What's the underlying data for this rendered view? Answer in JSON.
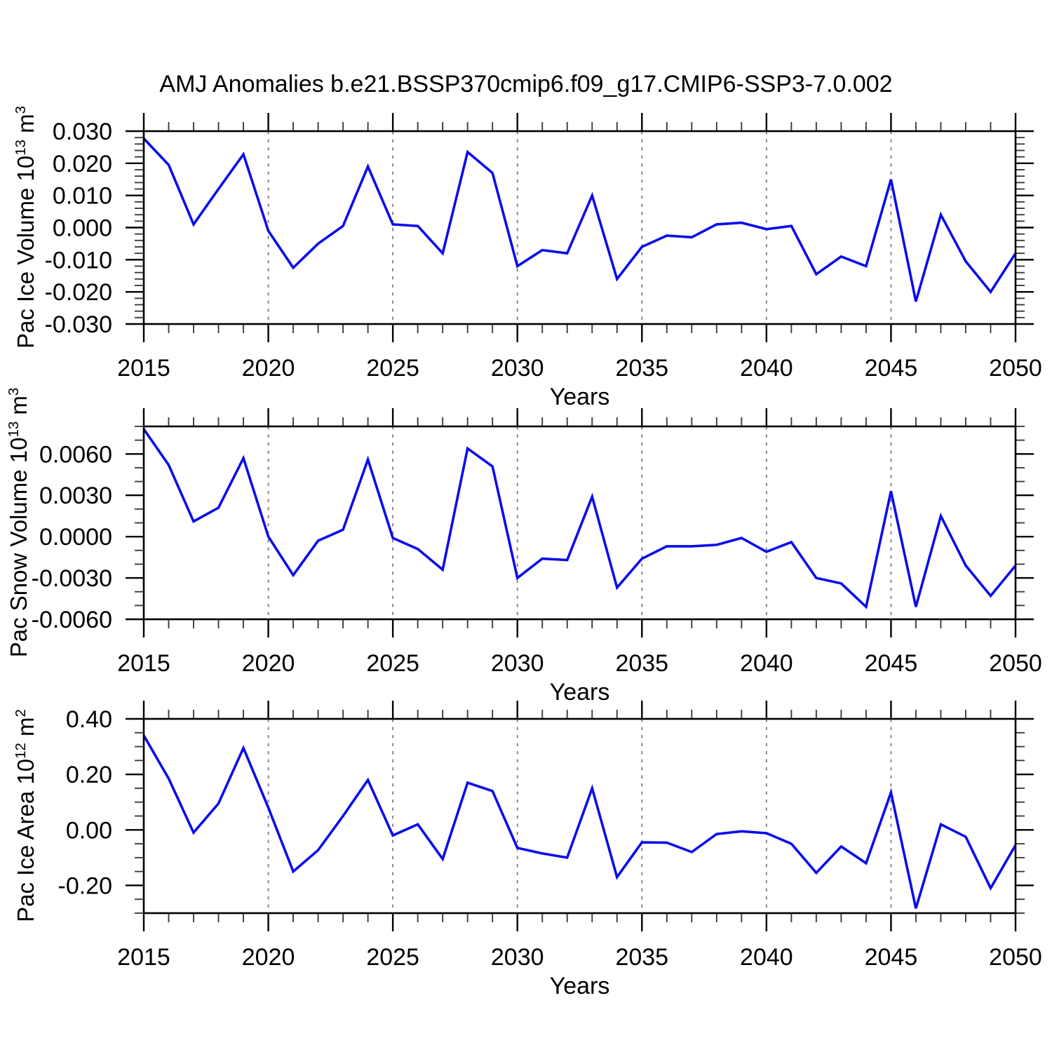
{
  "title": "AMJ Anomalies b.e21.BSSP370cmip6.f09_g17.CMIP6-SSP3-7.0.002",
  "style": {
    "line_color": "#0b0bee",
    "grid_color": "#7d7d7d",
    "axis_color": "#000000",
    "minor_tick_color": "#3c3c3c"
  },
  "chart_data": [
    {
      "type": "line",
      "ylabel_main": "Pac Ice Volume 10",
      "ylabel_exp": "13",
      "ylabel_unit": " m",
      "ylabel_unit_exp": "3",
      "xlabel": "Years",
      "xlim": [
        2015,
        2050
      ],
      "x_major": 5,
      "x_minor": 1,
      "xtick_labels": [
        "2015",
        "2020",
        "2025",
        "2030",
        "2035",
        "2040",
        "2045",
        "2050"
      ],
      "grid_x": [
        2020,
        2025,
        2030,
        2035,
        2040,
        2045
      ],
      "ylim": [
        -0.03,
        0.03
      ],
      "y_minor": 0.002,
      "ytick_values": [
        0.03,
        0.02,
        0.01,
        0.0,
        -0.01,
        -0.02,
        -0.03
      ],
      "ytick_labels": [
        "0.030",
        "0.020",
        "0.010",
        "0.000",
        "-0.010",
        "-0.020",
        "-0.030"
      ],
      "x": [
        2015,
        2016,
        2017,
        2018,
        2019,
        2020,
        2021,
        2022,
        2023,
        2024,
        2025,
        2026,
        2027,
        2028,
        2029,
        2030,
        2031,
        2032,
        2033,
        2034,
        2035,
        2036,
        2037,
        2038,
        2039,
        2040,
        2041,
        2042,
        2043,
        2044,
        2045,
        2046,
        2047,
        2048,
        2049,
        2050
      ],
      "values": [
        0.0277,
        0.0195,
        0.001,
        0.012,
        0.0228,
        -0.001,
        -0.0125,
        -0.005,
        0.0005,
        0.019,
        0.001,
        0.0005,
        -0.008,
        0.0235,
        0.017,
        -0.012,
        -0.007,
        -0.008,
        0.01,
        -0.016,
        -0.006,
        -0.0025,
        -0.003,
        0.001,
        0.0015,
        -0.0005,
        0.0005,
        -0.0145,
        -0.009,
        -0.012,
        0.015,
        -0.023,
        0.004,
        -0.0105,
        -0.02,
        -0.008
      ]
    },
    {
      "type": "line",
      "ylabel_main": "Pac Snow Volume 10",
      "ylabel_exp": "13",
      "ylabel_unit": " m",
      "ylabel_unit_exp": "3",
      "xlabel": "Years",
      "xlim": [
        2015,
        2050
      ],
      "x_major": 5,
      "x_minor": 1,
      "xtick_labels": [
        "2015",
        "2020",
        "2025",
        "2030",
        "2035",
        "2040",
        "2045",
        "2050"
      ],
      "grid_x": [
        2020,
        2025,
        2030,
        2035,
        2040,
        2045
      ],
      "ylim": [
        -0.006,
        0.008
      ],
      "y_minor": 0.001,
      "ytick_values": [
        0.006,
        0.003,
        0.0,
        -0.003,
        -0.006
      ],
      "ytick_labels": [
        "0.0060",
        "0.0030",
        "0.0000",
        "-0.0030",
        "-0.0060"
      ],
      "x": [
        2015,
        2016,
        2017,
        2018,
        2019,
        2020,
        2021,
        2022,
        2023,
        2024,
        2025,
        2026,
        2027,
        2028,
        2029,
        2030,
        2031,
        2032,
        2033,
        2034,
        2035,
        2036,
        2037,
        2038,
        2039,
        2040,
        2041,
        2042,
        2043,
        2044,
        2045,
        2046,
        2047,
        2048,
        2049,
        2050
      ],
      "values": [
        0.0078,
        0.0052,
        0.0011,
        0.0021,
        0.0057,
        0.0,
        -0.0028,
        -0.0003,
        0.0005,
        0.0056,
        -0.0001,
        -0.0009,
        -0.0024,
        0.0064,
        0.0051,
        -0.003,
        -0.0016,
        -0.0017,
        0.0029,
        -0.0037,
        -0.0016,
        -0.0007,
        -0.0007,
        -0.0006,
        -0.0001,
        -0.0011,
        -0.0004,
        -0.003,
        -0.0034,
        -0.0051,
        0.0033,
        -0.0051,
        0.0015,
        -0.0021,
        -0.0043,
        -0.0021
      ]
    },
    {
      "type": "line",
      "ylabel_main": "Pac Ice Area 10",
      "ylabel_exp": "12",
      "ylabel_unit": " m",
      "ylabel_unit_exp": "2",
      "xlabel": "Years",
      "xlim": [
        2015,
        2050
      ],
      "x_major": 5,
      "x_minor": 1,
      "xtick_labels": [
        "2015",
        "2020",
        "2025",
        "2030",
        "2035",
        "2040",
        "2045",
        "2050"
      ],
      "grid_x": [
        2020,
        2025,
        2030,
        2035,
        2040,
        2045
      ],
      "ylim": [
        -0.3,
        0.4
      ],
      "y_minor": 0.05,
      "ytick_values": [
        0.4,
        0.2,
        0.0,
        -0.2
      ],
      "ytick_labels": [
        "0.40",
        "0.20",
        "0.00",
        "-0.20"
      ],
      "x": [
        2015,
        2016,
        2017,
        2018,
        2019,
        2020,
        2021,
        2022,
        2023,
        2024,
        2025,
        2026,
        2027,
        2028,
        2029,
        2030,
        2031,
        2032,
        2033,
        2034,
        2035,
        2036,
        2037,
        2038,
        2039,
        2040,
        2041,
        2042,
        2043,
        2044,
        2045,
        2046,
        2047,
        2048,
        2049,
        2050
      ],
      "values": [
        0.34,
        0.185,
        -0.01,
        0.095,
        0.295,
        0.08,
        -0.15,
        -0.073,
        0.05,
        0.18,
        -0.02,
        0.02,
        -0.105,
        0.17,
        0.14,
        -0.065,
        -0.085,
        -0.1,
        0.15,
        -0.17,
        -0.045,
        -0.046,
        -0.08,
        -0.015,
        -0.005,
        -0.012,
        -0.05,
        -0.155,
        -0.06,
        -0.12,
        0.135,
        -0.283,
        0.02,
        -0.025,
        -0.21,
        -0.055
      ]
    }
  ]
}
